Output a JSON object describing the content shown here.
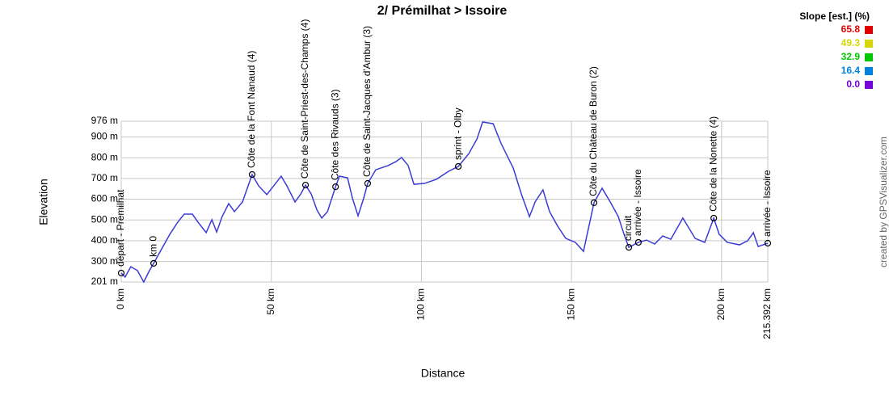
{
  "chart_data": {
    "type": "line",
    "title": "2/ Prémilhat > Issoire",
    "x_label": "Distance",
    "y_label": "Elevation",
    "credit": "created by GPSVisualizer.com",
    "xlim": [
      0,
      215.392
    ],
    "ylim": [
      201,
      976
    ],
    "xticks": [
      {
        "value": 0,
        "label": "0 km"
      },
      {
        "value": 50,
        "label": "50 km"
      },
      {
        "value": 100,
        "label": "100 km"
      },
      {
        "value": 150,
        "label": "150 km"
      },
      {
        "value": 200,
        "label": "200 km"
      },
      {
        "value": 215.392,
        "label": "215.392 km"
      }
    ],
    "yticks": [
      {
        "value": 201,
        "label": "201 m"
      },
      {
        "value": 300,
        "label": "300 m"
      },
      {
        "value": 400,
        "label": "400 m"
      },
      {
        "value": 500,
        "label": "500 m"
      },
      {
        "value": 600,
        "label": "600 m"
      },
      {
        "value": 700,
        "label": "700 m"
      },
      {
        "value": 800,
        "label": "800 m"
      },
      {
        "value": 900,
        "label": "900 m"
      },
      {
        "value": 976,
        "label": "976 m"
      }
    ],
    "grid": true,
    "x": [
      0,
      1.3,
      3.2,
      5.4,
      7.5,
      9.4,
      10.8,
      13.5,
      16.2,
      18.8,
      21.0,
      23.7,
      25.6,
      28.3,
      30.2,
      31.8,
      33.6,
      35.8,
      37.7,
      40.4,
      43.6,
      45.8,
      48.5,
      51.2,
      53.3,
      55.2,
      57.9,
      59.8,
      61.4,
      63.3,
      65.2,
      66.8,
      68.7,
      71.4,
      72.7,
      75.4,
      77.0,
      78.9,
      80.8,
      82.1,
      84.8,
      88.9,
      91.5,
      93.4,
      95.6,
      97.5,
      101.0,
      105.0,
      109.0,
      112.3,
      115.8,
      118.5,
      120.4,
      123.9,
      126.6,
      130.6,
      133.3,
      136.0,
      137.9,
      140.5,
      142.7,
      145.4,
      148.1,
      151.3,
      154.0,
      157.5,
      160.2,
      162.9,
      165.6,
      167.5,
      169.1,
      172.3,
      175.0,
      177.7,
      180.4,
      183.1,
      187.1,
      191.2,
      194.4,
      197.4,
      199.2,
      201.9,
      206.0,
      208.7,
      210.6,
      212.2,
      215.392
    ],
    "series": [
      {
        "color": "#3b3bd6",
        "values": [
          244,
          225,
          275,
          256,
          201,
          256,
          291,
          361,
          431,
          489,
          528,
          528,
          489,
          439,
          501,
          442,
          516,
          579,
          540,
          587,
          719,
          664,
          622,
          672,
          711,
          664,
          587,
          625,
          668,
          625,
          548,
          509,
          540,
          660,
          711,
          703,
          606,
          520,
          606,
          676,
          742,
          762,
          781,
          801,
          762,
          672,
          676,
          696,
          734,
          758,
          820,
          890,
          972,
          964,
          867,
          750,
          625,
          516,
          587,
          645,
          540,
          470,
          411,
          392,
          349,
          583,
          653,
          587,
          516,
          431,
          368,
          392,
          403,
          384,
          423,
          407,
          509,
          411,
          392,
          509,
          431,
          392,
          380,
          400,
          439,
          372,
          388
        ]
      }
    ],
    "waypoints": [
      {
        "name": "départ - Premilhat",
        "x": 0,
        "y": 244
      },
      {
        "name": "km 0",
        "x": 10.8,
        "y": 291
      },
      {
        "name": "Côte de la Font Nanaud (4)",
        "x": 43.6,
        "y": 719
      },
      {
        "name": "Côte de Saint-Priest-des-Champs (4)",
        "x": 61.4,
        "y": 668
      },
      {
        "name": "Côte des Rivauds (3)",
        "x": 71.4,
        "y": 660
      },
      {
        "name": "Côte de Saint-Jacques d'Ambur (3)",
        "x": 82.1,
        "y": 676
      },
      {
        "name": "sprint - Olby",
        "x": 112.3,
        "y": 758
      },
      {
        "name": "Côte du Château de Buron (2)",
        "x": 157.5,
        "y": 583
      },
      {
        "name": "circuit",
        "x": 169.1,
        "y": 368
      },
      {
        "name": "arrivée - Issoire",
        "x": 172.3,
        "y": 392
      },
      {
        "name": "Côte de la Nonette (4)",
        "x": 197.4,
        "y": 509
      },
      {
        "name": "arrivée - Issoire",
        "x": 215.392,
        "y": 388
      }
    ],
    "slope_legend": {
      "title": "Slope [est.] (%)",
      "values": [
        65.8,
        49.3,
        32.9,
        16.4,
        {
          "value": 0,
          "label": "0.0"
        }
      ],
      "colors": [
        "#e00000",
        "#d6d600",
        "#00c800",
        "#0080e0",
        "#7800d8"
      ]
    }
  }
}
